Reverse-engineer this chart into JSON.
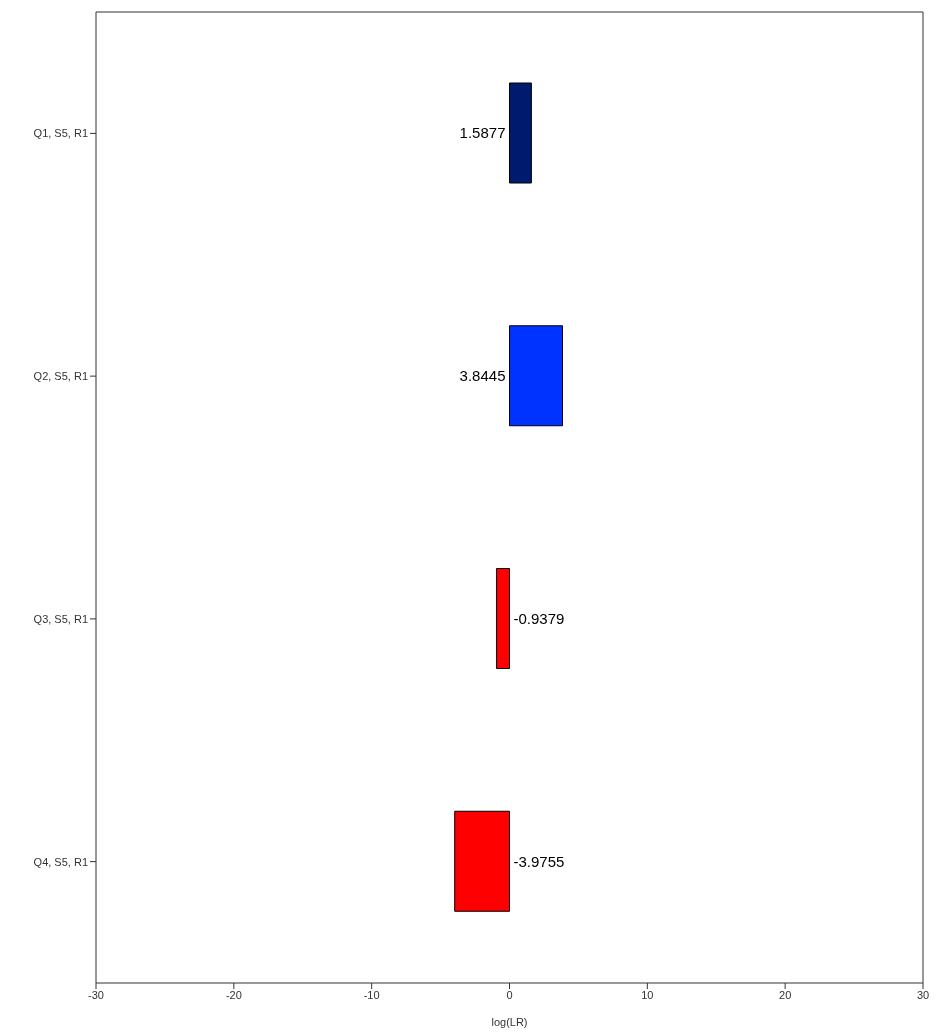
{
  "chart_data": {
    "type": "bar",
    "orientation": "horizontal",
    "xlabel": "log(LR)",
    "categories": [
      "Q1, S5, R1",
      "Q2, S5, R1",
      "Q3, S5, R1",
      "Q4, S5, R1"
    ],
    "values": [
      1.5877,
      3.8445,
      -0.9379,
      -3.9755
    ],
    "colors": [
      "#001a6e",
      "#0033ff",
      "#ff0000",
      "#ff0000"
    ],
    "xlim": [
      -30,
      30
    ],
    "xticks": [
      -30,
      -20,
      -10,
      0,
      10,
      20,
      30
    ],
    "data_labels": true
  }
}
